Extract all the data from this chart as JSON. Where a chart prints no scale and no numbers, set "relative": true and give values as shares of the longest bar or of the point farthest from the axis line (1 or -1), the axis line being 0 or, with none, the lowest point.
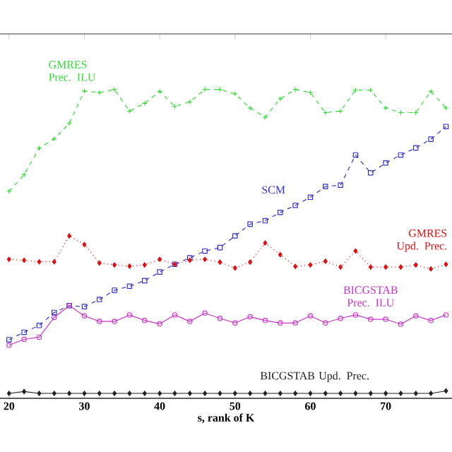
{
  "chart_data": {
    "type": "line",
    "relative": true,
    "xlabel": "s, rank of K",
    "x": [
      20,
      22,
      24,
      26,
      28,
      30,
      32,
      34,
      36,
      38,
      40,
      42,
      44,
      46,
      48,
      50,
      52,
      54,
      56,
      58,
      60,
      62,
      64,
      66,
      68,
      70,
      72,
      74,
      76,
      78
    ],
    "xlim": [
      18.8,
      78.8
    ],
    "xticks": [
      20,
      30,
      40,
      50,
      60,
      70
    ],
    "grid": false,
    "series": [
      {
        "name": "GMRES Prec. ILU",
        "color": "#33dd33",
        "marker": "cross",
        "line_style": "dashed",
        "values": [
          0.67,
          0.724,
          0.81,
          0.84,
          0.89,
          0.995,
          0.99,
          1.0,
          0.93,
          0.955,
          0.994,
          0.945,
          0.96,
          1.0,
          1.0,
          0.986,
          0.94,
          0.91,
          0.97,
          1.0,
          0.99,
          0.925,
          0.93,
          0.998,
          0.998,
          0.94,
          0.925,
          0.925,
          0.994,
          0.94
        ]
      },
      {
        "name": "SCM",
        "color": "#3333cc",
        "marker": "square",
        "line_style": "dashed",
        "values": [
          0.19,
          0.214,
          0.236,
          0.278,
          0.3,
          0.297,
          0.32,
          0.35,
          0.363,
          0.381,
          0.409,
          0.434,
          0.455,
          0.477,
          0.488,
          0.526,
          0.564,
          0.575,
          0.602,
          0.625,
          0.651,
          0.686,
          0.69,
          0.788,
          0.73,
          0.762,
          0.788,
          0.811,
          0.839,
          0.88
        ]
      },
      {
        "name": "GMRES Upd. Prec.",
        "color": "#e01010",
        "marker": "diamond",
        "line_style": "dotted",
        "values": [
          0.45,
          0.447,
          0.442,
          0.442,
          0.526,
          0.498,
          0.438,
          0.432,
          0.428,
          0.432,
          0.45,
          0.434,
          0.447,
          0.45,
          0.441,
          0.422,
          0.441,
          0.503,
          0.465,
          0.427,
          0.432,
          0.444,
          0.425,
          0.477,
          0.425,
          0.425,
          0.425,
          0.432,
          0.419,
          0.434
        ]
      },
      {
        "name": "BICGSTAB Prec. ILU",
        "color": "#cc33cc",
        "marker": "circle",
        "line_style": "solid",
        "values": [
          0.172,
          0.191,
          0.198,
          0.262,
          0.3,
          0.267,
          0.249,
          0.249,
          0.27,
          0.252,
          0.241,
          0.27,
          0.249,
          0.276,
          0.259,
          0.244,
          0.264,
          0.252,
          0.244,
          0.244,
          0.267,
          0.244,
          0.259,
          0.27,
          0.256,
          0.256,
          0.24,
          0.267,
          0.252,
          0.27
        ]
      },
      {
        "name": "BICGSTAB Upd. Prec.",
        "color": "#222222",
        "marker": "diamond",
        "line_style": "solid",
        "values": [
          0.016,
          0.022,
          0.016,
          0.016,
          0.016,
          0.016,
          0.016,
          0.016,
          0.016,
          0.016,
          0.016,
          0.016,
          0.016,
          0.016,
          0.016,
          0.016,
          0.016,
          0.016,
          0.016,
          0.016,
          0.016,
          0.016,
          0.016,
          0.016,
          0.016,
          0.016,
          0.016,
          0.016,
          0.016,
          0.024
        ]
      }
    ]
  }
}
